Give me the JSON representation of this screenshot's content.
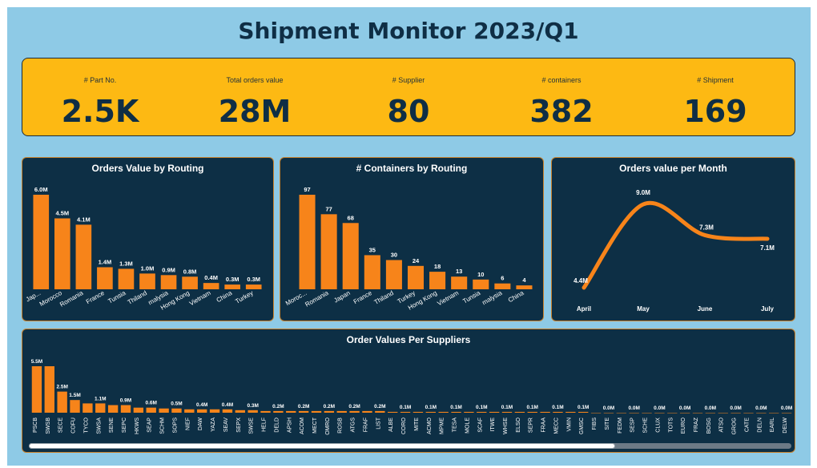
{
  "dashboard": {
    "title": "Shipment Monitor 2023/Q1"
  },
  "kpis": [
    {
      "label": "# Part No.",
      "value": "2.5K"
    },
    {
      "label": "Total orders value",
      "value": "28M"
    },
    {
      "label": "# Supplier",
      "value": "80"
    },
    {
      "label": "# containers",
      "value": "382"
    },
    {
      "label": "# Shipment",
      "value": "169"
    }
  ],
  "colors": {
    "background": "#8ecae6",
    "kpi_bar": "#fdb913",
    "panel": "#0d2f45",
    "bar": "#f7841a",
    "text_dark": "#0f2e45"
  },
  "chart_data": [
    {
      "id": "routing_value",
      "type": "bar",
      "title": "Orders Value by Routing",
      "categories": [
        "Jap...",
        "Morocco",
        "Romania",
        "France",
        "Tunsia",
        "Thiland",
        "malysia",
        "Hong Kong",
        "Vietnam",
        "China",
        "Turkey"
      ],
      "values": [
        6.0,
        4.5,
        4.1,
        1.4,
        1.3,
        1.0,
        0.9,
        0.8,
        0.4,
        0.3,
        0.3
      ],
      "labels": [
        "6.0M",
        "4.5M",
        "4.1M",
        "1.4M",
        "1.3M",
        "1.0M",
        "0.9M",
        "0.8M",
        "0.4M",
        "0.3M",
        "0.3M"
      ],
      "ylim": [
        0,
        6.0
      ]
    },
    {
      "id": "routing_containers",
      "type": "bar",
      "title": "# Containers by Routing",
      "categories": [
        "Moroc...",
        "Romania",
        "Japan",
        "France",
        "Thiland",
        "Turkey",
        "Hong Kong",
        "Vietnam",
        "Tunsia",
        "malysia",
        "China"
      ],
      "values": [
        97,
        77,
        68,
        35,
        30,
        24,
        18,
        13,
        10,
        6,
        4
      ],
      "labels": [
        "97",
        "77",
        "68",
        "35",
        "30",
        "24",
        "18",
        "13",
        "10",
        "6",
        "4"
      ],
      "ylim": [
        0,
        97
      ]
    },
    {
      "id": "monthly_value",
      "type": "line",
      "title": "Orders value per Month",
      "categories": [
        "April",
        "May",
        "June",
        "July"
      ],
      "values": [
        4.4,
        9.0,
        7.3,
        7.1
      ],
      "labels": [
        "4.4M",
        "9.0M",
        "7.3M",
        "7.1M"
      ],
      "ylim": [
        4.4,
        9.0
      ]
    },
    {
      "id": "supplier_value",
      "type": "bar",
      "title": "Order Values Per Suppliers",
      "categories": [
        "PSCB",
        "SWSB",
        "SECE",
        "COFU",
        "TYCO",
        "SWSA",
        "SENE",
        "SEPC",
        "HKWS",
        "SEAP",
        "SCHM",
        "SOPS",
        "NIEF",
        "DAW",
        "YAZA",
        "SEAV",
        "SEPX",
        "SWSE",
        "HELF",
        "DELD",
        "APSH",
        "ACOM",
        "MECT",
        "OMRO",
        "ROSB",
        "ATGS",
        "FRAF",
        "LIST",
        "ALBE",
        "CORO",
        "MITE",
        "ACMO",
        "MPME",
        "TESA",
        "MOLE",
        "SCAF",
        "ITWE",
        "WHSE",
        "ELSO",
        "SEPR",
        "FRAA",
        "MECC",
        "VMIN",
        "GMSC",
        "FIBS",
        "SITE",
        "FEDM",
        "SESP",
        "SCHE",
        "CLUX",
        "TOTS",
        "EURO",
        "FRAZ",
        "BOSG",
        "ATSO",
        "GROG",
        "CATE",
        "DELN",
        "EARL",
        "DELW"
      ],
      "values": [
        5.5,
        5.5,
        2.5,
        1.5,
        1.1,
        1.1,
        0.9,
        0.9,
        0.6,
        0.6,
        0.5,
        0.5,
        0.4,
        0.4,
        0.4,
        0.4,
        0.3,
        0.3,
        0.2,
        0.2,
        0.2,
        0.2,
        0.2,
        0.2,
        0.2,
        0.2,
        0.2,
        0.2,
        0.1,
        0.1,
        0.1,
        0.1,
        0.1,
        0.1,
        0.1,
        0.1,
        0.1,
        0.1,
        0.1,
        0.1,
        0.1,
        0.1,
        0.1,
        0.1,
        0.0,
        0.0,
        0.0,
        0.0,
        0.0,
        0.0,
        0.0,
        0.0,
        0.0,
        0.0,
        0.0,
        0.0,
        0.0,
        0.0,
        0.0,
        0.0
      ],
      "labels": [
        "5.5M",
        "",
        "2.5M",
        "1.5M",
        "",
        "1.1M",
        "",
        "0.9M",
        "",
        "0.6M",
        "",
        "0.5M",
        "",
        "0.4M",
        "",
        "0.4M",
        "",
        "0.3M",
        "",
        "0.2M",
        "",
        "0.2M",
        "",
        "0.2M",
        "",
        "0.2M",
        "",
        "0.2M",
        "",
        "0.1M",
        "",
        "0.1M",
        "",
        "0.1M",
        "",
        "0.1M",
        "",
        "0.1M",
        "",
        "0.1M",
        "",
        "0.1M",
        "",
        "0.1M",
        "",
        "0.0M",
        "",
        "0.0M",
        "",
        "0.0M",
        "",
        "0.0M",
        "",
        "0.0M",
        "",
        "0.0M",
        "",
        "0.0M",
        "",
        "0.0M"
      ],
      "ylim": [
        0,
        5.5
      ]
    }
  ]
}
